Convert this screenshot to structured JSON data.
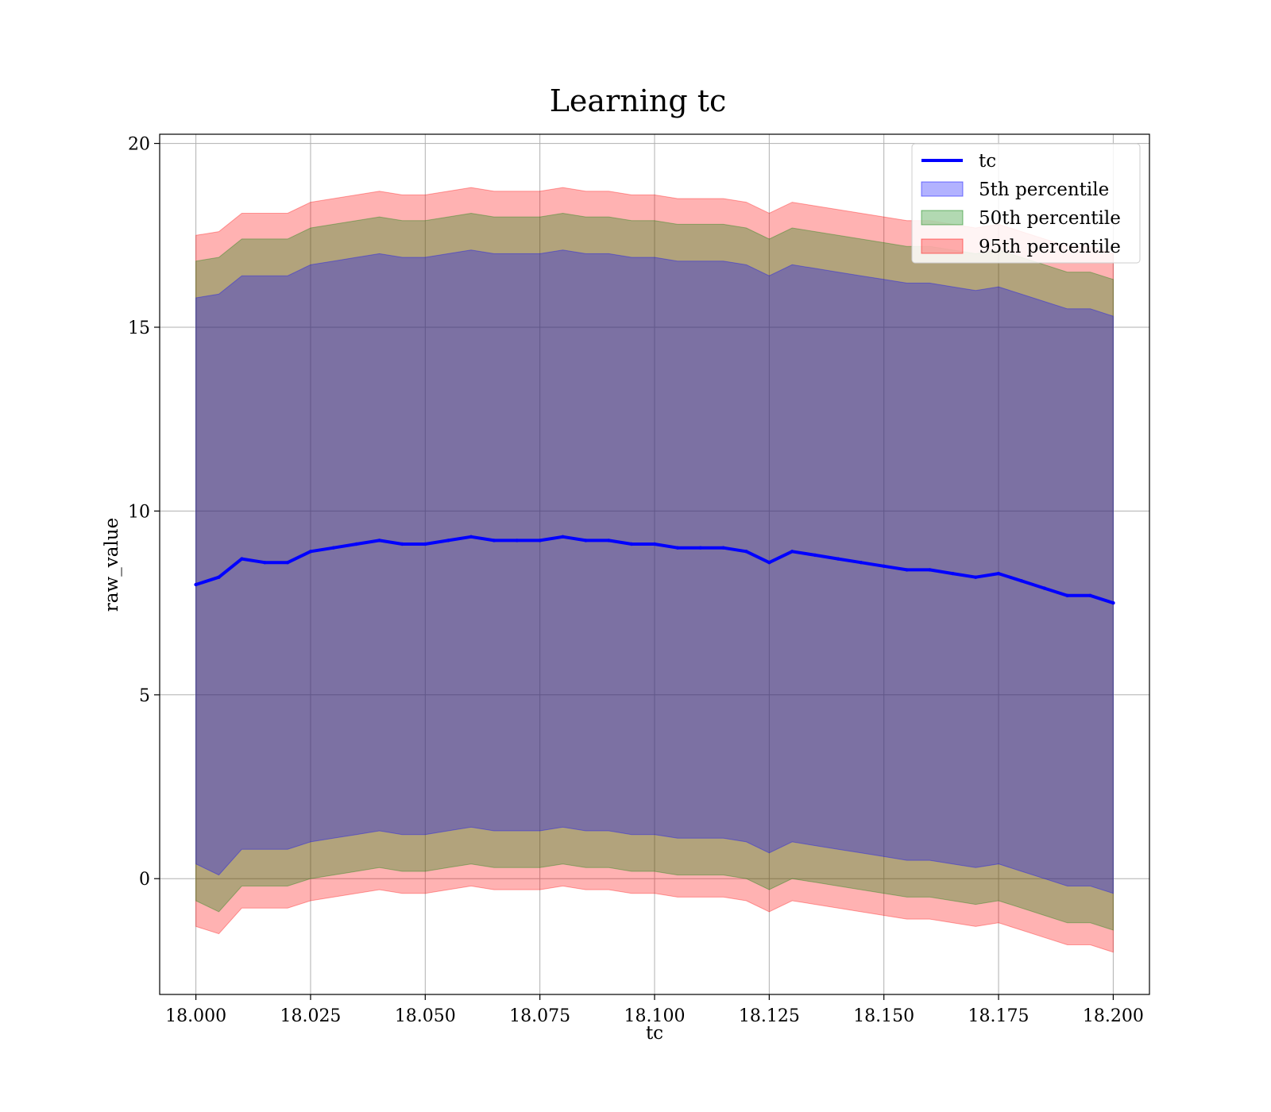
{
  "chart_data": {
    "type": "area",
    "title": "Learning tc",
    "xlabel": "tc",
    "ylabel": "raw_value",
    "xlim": [
      17.9921,
      18.2079
    ],
    "ylim": [
      -3.15,
      20.25
    ],
    "x_ticks": [
      "18.000",
      "18.025",
      "18.050",
      "18.075",
      "18.100",
      "18.125",
      "18.150",
      "18.175",
      "18.200"
    ],
    "y_ticks": [
      "0",
      "5",
      "10",
      "15",
      "20"
    ],
    "grid": true,
    "legend": {
      "position": "top-right",
      "entries": [
        "tc",
        "5th percentile",
        "50th percentile",
        "95th percentile"
      ]
    },
    "x": [
      18.0,
      18.005,
      18.01,
      18.015,
      18.02,
      18.025,
      18.03,
      18.035,
      18.04,
      18.045,
      18.05,
      18.055,
      18.06,
      18.065,
      18.07,
      18.075,
      18.08,
      18.085,
      18.09,
      18.095,
      18.1,
      18.105,
      18.11,
      18.115,
      18.12,
      18.125,
      18.13,
      18.135,
      18.14,
      18.145,
      18.15,
      18.155,
      18.16,
      18.165,
      18.17,
      18.175,
      18.18,
      18.185,
      18.19,
      18.195,
      18.2
    ],
    "series": [
      {
        "name": "tc",
        "kind": "line",
        "color": "#0000ff",
        "values": [
          8.0,
          8.2,
          8.7,
          8.6,
          8.6,
          8.9,
          9.0,
          9.1,
          9.2,
          9.1,
          9.1,
          9.2,
          9.3,
          9.2,
          9.2,
          9.2,
          9.3,
          9.2,
          9.2,
          9.1,
          9.1,
          9.0,
          9.0,
          9.0,
          8.9,
          8.6,
          8.9,
          8.8,
          8.7,
          8.6,
          8.5,
          8.4,
          8.4,
          8.3,
          8.2,
          8.3,
          8.1,
          7.9,
          7.7,
          7.7,
          7.5
        ]
      },
      {
        "name": "5th percentile",
        "kind": "band",
        "color": "#0000ff",
        "opacity": 0.3,
        "lower": [
          0.4,
          0.1,
          0.8,
          0.8,
          0.8,
          1.0,
          1.1,
          1.2,
          1.3,
          1.2,
          1.2,
          1.3,
          1.4,
          1.3,
          1.3,
          1.3,
          1.4,
          1.3,
          1.3,
          1.2,
          1.2,
          1.1,
          1.1,
          1.1,
          1.0,
          0.7,
          1.0,
          0.9,
          0.8,
          0.7,
          0.6,
          0.5,
          0.5,
          0.4,
          0.3,
          0.4,
          0.2,
          0.0,
          -0.2,
          -0.2,
          -0.4
        ],
        "upper": [
          15.8,
          15.9,
          16.4,
          16.4,
          16.4,
          16.7,
          16.8,
          16.9,
          17.0,
          16.9,
          16.9,
          17.0,
          17.1,
          17.0,
          17.0,
          17.0,
          17.1,
          17.0,
          17.0,
          16.9,
          16.9,
          16.8,
          16.8,
          16.8,
          16.7,
          16.4,
          16.7,
          16.6,
          16.5,
          16.4,
          16.3,
          16.2,
          16.2,
          16.1,
          16.0,
          16.1,
          15.9,
          15.7,
          15.5,
          15.5,
          15.3
        ]
      },
      {
        "name": "50th percentile",
        "kind": "band",
        "color": "#008000",
        "opacity": 0.3,
        "lower": [
          -0.6,
          -0.9,
          -0.2,
          -0.2,
          -0.2,
          0.0,
          0.1,
          0.2,
          0.3,
          0.2,
          0.2,
          0.3,
          0.4,
          0.3,
          0.3,
          0.3,
          0.4,
          0.3,
          0.3,
          0.2,
          0.2,
          0.1,
          0.1,
          0.1,
          0.0,
          -0.3,
          0.0,
          -0.1,
          -0.2,
          -0.3,
          -0.4,
          -0.5,
          -0.5,
          -0.6,
          -0.7,
          -0.6,
          -0.8,
          -1.0,
          -1.2,
          -1.2,
          -1.4
        ],
        "upper": [
          16.8,
          16.9,
          17.4,
          17.4,
          17.4,
          17.7,
          17.8,
          17.9,
          18.0,
          17.9,
          17.9,
          18.0,
          18.1,
          18.0,
          18.0,
          18.0,
          18.1,
          18.0,
          18.0,
          17.9,
          17.9,
          17.8,
          17.8,
          17.8,
          17.7,
          17.4,
          17.7,
          17.6,
          17.5,
          17.4,
          17.3,
          17.2,
          17.2,
          17.1,
          17.0,
          17.1,
          16.9,
          16.7,
          16.5,
          16.5,
          16.3
        ]
      },
      {
        "name": "95th percentile",
        "kind": "band",
        "color": "#ff0000",
        "opacity": 0.3,
        "lower": [
          -1.3,
          -1.5,
          -0.8,
          -0.8,
          -0.8,
          -0.6,
          -0.5,
          -0.4,
          -0.3,
          -0.4,
          -0.4,
          -0.3,
          -0.2,
          -0.3,
          -0.3,
          -0.3,
          -0.2,
          -0.3,
          -0.3,
          -0.4,
          -0.4,
          -0.5,
          -0.5,
          -0.5,
          -0.6,
          -0.9,
          -0.6,
          -0.7,
          -0.8,
          -0.9,
          -1.0,
          -1.1,
          -1.1,
          -1.2,
          -1.3,
          -1.2,
          -1.4,
          -1.6,
          -1.8,
          -1.8,
          -2.0
        ],
        "upper": [
          17.5,
          17.6,
          18.1,
          18.1,
          18.1,
          18.4,
          18.5,
          18.6,
          18.7,
          18.6,
          18.6,
          18.7,
          18.8,
          18.7,
          18.7,
          18.7,
          18.8,
          18.7,
          18.7,
          18.6,
          18.6,
          18.5,
          18.5,
          18.5,
          18.4,
          18.1,
          18.4,
          18.3,
          18.2,
          18.1,
          18.0,
          17.9,
          17.9,
          17.8,
          17.7,
          17.8,
          17.6,
          17.4,
          17.2,
          17.2,
          17.0
        ]
      }
    ]
  }
}
